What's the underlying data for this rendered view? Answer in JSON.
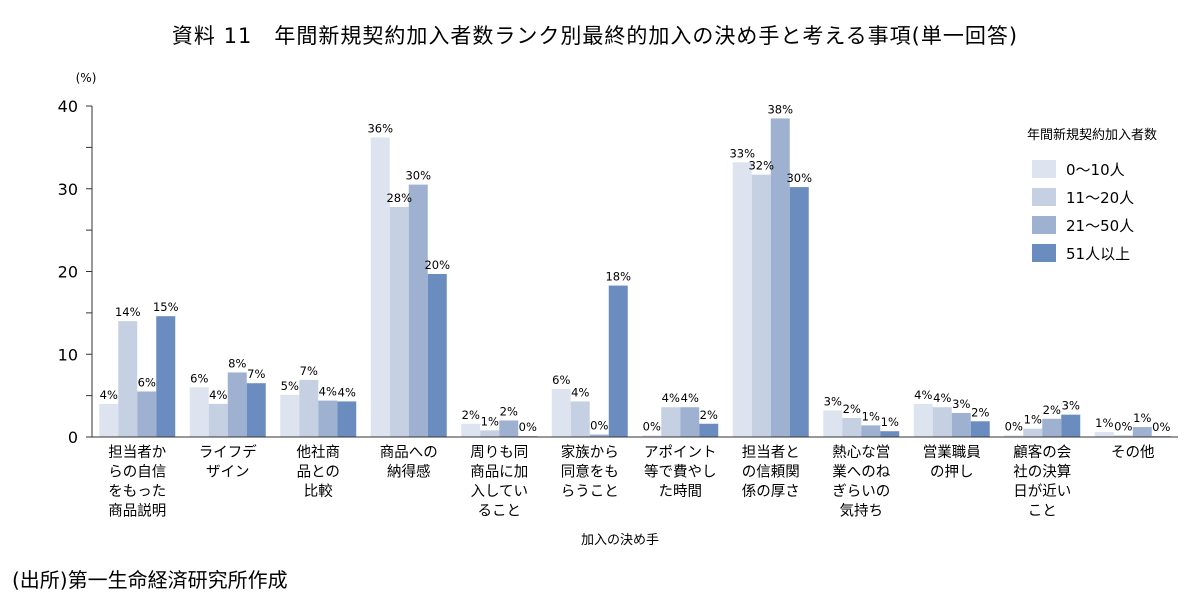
{
  "chart_data": {
    "type": "bar",
    "title": "資料 11　年間新規契約加入者数ランク別最終的加入の決め手と考える事項(単一回答)",
    "unit": "(%)",
    "xlabel": "加入の決め手",
    "ylabel": "",
    "ylim": [
      0,
      40
    ],
    "yticks": [
      "0",
      "10",
      "20",
      "30",
      "40"
    ],
    "grid": false,
    "legend_title": "年間新規契約加入者数",
    "legend_position": "right",
    "categories": [
      [
        "担当者か",
        "らの自信",
        "をもった",
        "商品説明"
      ],
      [
        "ライフデ",
        "ザイン"
      ],
      [
        "他社商",
        "品との",
        "比較"
      ],
      [
        "商品への",
        "納得感"
      ],
      [
        "周りも同",
        "商品に加",
        "入してい",
        "ること"
      ],
      [
        "家族から",
        "同意をも",
        "らうこと"
      ],
      [
        "アポイント",
        "等で費やし",
        "た時間"
      ],
      [
        "担当者と",
        "の信頼関",
        "係の厚さ"
      ],
      [
        "熱心な営",
        "業へのね",
        "ぎらいの",
        "気持ち"
      ],
      [
        "営業職員",
        "の押し"
      ],
      [
        "顧客の会",
        "社の決算",
        "日が近い",
        "こと"
      ],
      [
        "その他"
      ]
    ],
    "series": [
      {
        "name": "0～10人",
        "color": "#dde4ef",
        "values": [
          4.0,
          6.0,
          5.1,
          36.2,
          1.6,
          5.8,
          0.2,
          33.2,
          3.2,
          4.0,
          0.2,
          0.6
        ],
        "labels": [
          "4%",
          "6%",
          "5%",
          "36%",
          "2%",
          "6%",
          "0%",
          "33%",
          "3%",
          "4%",
          "0%",
          "1%"
        ]
      },
      {
        "name": "11～20人",
        "color": "#c5d0e2",
        "values": [
          14.0,
          4.0,
          6.9,
          27.8,
          0.8,
          4.3,
          3.6,
          31.7,
          2.3,
          3.6,
          1.0,
          0.2
        ],
        "labels": [
          "14%",
          "4%",
          "7%",
          "28%",
          "1%",
          "4%",
          "4%",
          "32%",
          "2%",
          "4%",
          "1%",
          "0%"
        ]
      },
      {
        "name": "21～50人",
        "color": "#9eb1d1",
        "values": [
          5.5,
          7.8,
          4.4,
          30.5,
          2.0,
          0.3,
          3.6,
          38.5,
          1.4,
          2.9,
          2.2,
          1.2
        ],
        "labels": [
          "6%",
          "8%",
          "4%",
          "30%",
          "2%",
          "0%",
          "4%",
          "38%",
          "1%",
          "3%",
          "2%",
          "1%"
        ]
      },
      {
        "name": "51人以上",
        "color": "#6b8cbf",
        "values": [
          14.6,
          6.5,
          4.3,
          19.7,
          0.1,
          18.3,
          1.6,
          30.2,
          0.7,
          1.9,
          2.7,
          0.1
        ],
        "labels": [
          "15%",
          "7%",
          "4%",
          "20%",
          "0%",
          "18%",
          "2%",
          "30%",
          "1%",
          "2%",
          "3%",
          "0%"
        ]
      }
    ]
  },
  "source_note": "(出所)第一生命経済研究所作成"
}
